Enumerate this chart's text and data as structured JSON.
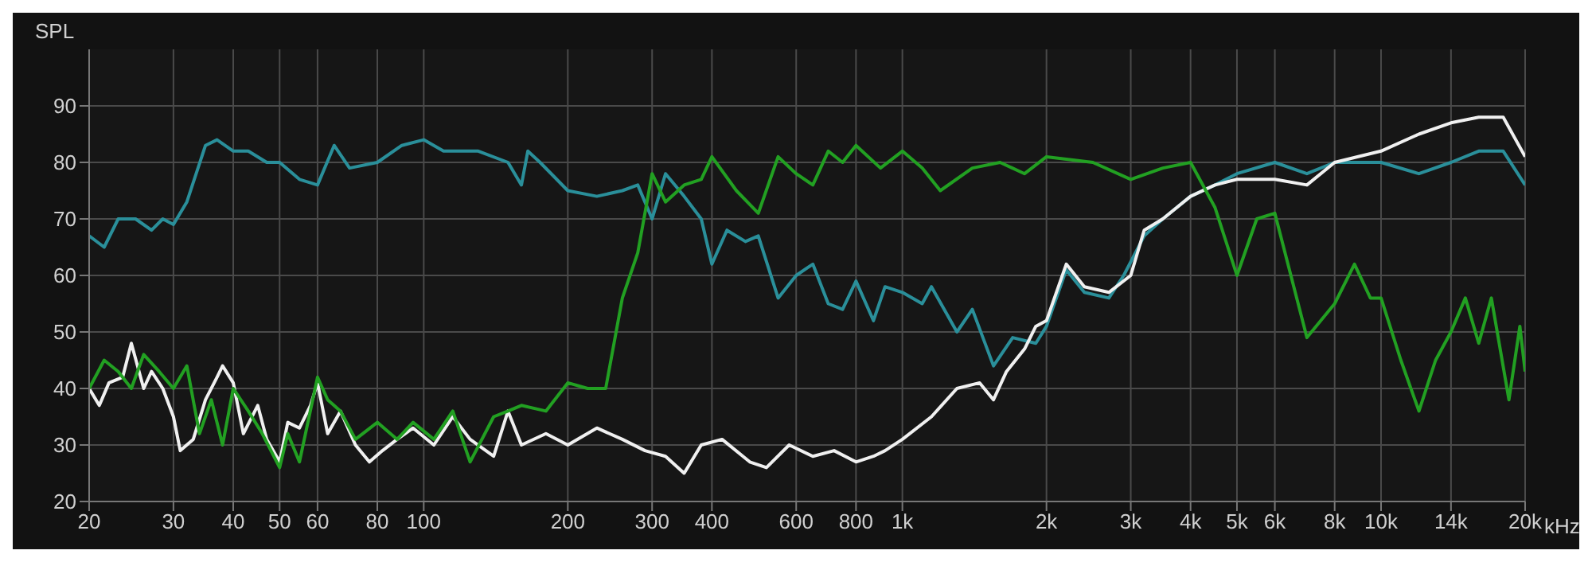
{
  "chart_data": {
    "type": "line",
    "ylabel": "SPL",
    "log": "x",
    "grid": true,
    "xlabel": "kHz",
    "marker": "none",
    "line_style": "solid",
    "xlim": [
      20,
      20000
    ],
    "ylim": [
      20,
      100
    ],
    "xticks": [
      20,
      30,
      40,
      50,
      60,
      80,
      100,
      200,
      300,
      400,
      600,
      800,
      {
        "value": 1000,
        "label": "1k"
      },
      {
        "value": 2000,
        "label": "2k"
      },
      {
        "value": 3000,
        "label": "3k"
      },
      {
        "value": 4000,
        "label": "4k"
      },
      {
        "value": 5000,
        "label": "5k"
      },
      {
        "value": 6000,
        "label": "6k"
      },
      {
        "value": 8000,
        "label": "8k"
      },
      {
        "value": 10000,
        "label": "10k"
      },
      {
        "value": 14000,
        "label": "14k"
      },
      {
        "value": 20000,
        "label": "20k"
      }
    ],
    "yticks": [
      20,
      30,
      40,
      50,
      60,
      70,
      80,
      90
    ],
    "series": [
      {
        "color": "#2a8f9a",
        "x": [
          20,
          21.5,
          23,
          25,
          27,
          28.5,
          30,
          32,
          35,
          37,
          40,
          43,
          47,
          50,
          55,
          60,
          65,
          70,
          80,
          90,
          100,
          110,
          130,
          150,
          160,
          165,
          175,
          200,
          230,
          260,
          280,
          300,
          320,
          350,
          380,
          400,
          430,
          470,
          500,
          550,
          600,
          650,
          700,
          750,
          800,
          870,
          920,
          1000,
          1100,
          1150,
          1300,
          1400,
          1550,
          1700,
          1900,
          2000,
          2200,
          2400,
          2700,
          2900,
          3200,
          3500,
          4000,
          4500,
          5000,
          6000,
          7000,
          8000,
          10000,
          12000,
          14000,
          16000,
          18000,
          20000
        ],
        "values": [
          67,
          65,
          70,
          70,
          68,
          70,
          69,
          73,
          83,
          84,
          82,
          82,
          80,
          80,
          77,
          76,
          83,
          79,
          80,
          83,
          84,
          82,
          82,
          80,
          76,
          82,
          80,
          75,
          74,
          75,
          76,
          70,
          78,
          74,
          70,
          62,
          68,
          66,
          67,
          56,
          60,
          62,
          55,
          54,
          59,
          52,
          58,
          57,
          55,
          58,
          50,
          54,
          44,
          49,
          48,
          51,
          61,
          57,
          56,
          60,
          67,
          70,
          74,
          76,
          78,
          80,
          78,
          80,
          80,
          78,
          80,
          82,
          82,
          76
        ]
      },
      {
        "color": "#f0f0f0",
        "x": [
          20,
          21,
          22,
          23.5,
          24.5,
          26,
          27,
          28.5,
          30,
          31,
          33,
          35,
          37,
          38,
          40,
          42,
          45,
          47,
          50,
          52,
          55,
          58,
          60,
          63,
          67,
          72,
          77,
          82,
          88,
          95,
          105,
          115,
          125,
          140,
          150,
          160,
          180,
          200,
          230,
          260,
          290,
          320,
          350,
          380,
          420,
          480,
          520,
          580,
          650,
          720,
          800,
          870,
          920,
          1000,
          1150,
          1300,
          1450,
          1550,
          1650,
          1800,
          1900,
          2000,
          2200,
          2400,
          2700,
          3000,
          3200,
          3500,
          4000,
          4500,
          5000,
          6000,
          7000,
          8000,
          10000,
          12000,
          14000,
          16000,
          18000,
          20000
        ],
        "values": [
          40,
          37,
          41,
          42,
          48,
          40,
          43,
          40,
          35,
          29,
          31,
          38,
          42,
          44,
          41,
          32,
          37,
          31,
          27,
          34,
          33,
          37,
          41,
          32,
          36,
          30,
          27,
          29,
          31,
          33,
          30,
          35,
          31,
          28,
          36,
          30,
          32,
          30,
          33,
          31,
          29,
          28,
          25,
          30,
          31,
          27,
          26,
          30,
          28,
          29,
          27,
          28,
          29,
          31,
          35,
          40,
          41,
          38,
          43,
          47,
          51,
          52,
          62,
          58,
          57,
          60,
          68,
          70,
          74,
          76,
          77,
          77,
          76,
          80,
          82,
          85,
          87,
          88,
          88,
          81
        ]
      },
      {
        "color": "#22a022",
        "x": [
          20,
          21.5,
          23,
          24.5,
          26,
          28,
          30,
          32,
          34,
          36,
          38,
          40,
          43,
          46,
          50,
          52,
          55,
          60,
          63,
          67,
          72,
          80,
          88,
          95,
          105,
          115,
          125,
          140,
          150,
          160,
          180,
          200,
          220,
          240,
          260,
          280,
          300,
          320,
          350,
          380,
          400,
          450,
          500,
          550,
          600,
          650,
          700,
          750,
          800,
          900,
          1000,
          1100,
          1200,
          1400,
          1600,
          1800,
          2000,
          2500,
          3000,
          3500,
          4000,
          4500,
          5000,
          5500,
          6000,
          7000,
          8000,
          8800,
          9500,
          10000,
          11000,
          12000,
          13000,
          14000,
          15000,
          16000,
          17000,
          18500,
          19500,
          20000
        ],
        "values": [
          40,
          45,
          43,
          40,
          46,
          43,
          40,
          44,
          32,
          38,
          30,
          40,
          36,
          32,
          26,
          32,
          27,
          42,
          38,
          36,
          31,
          34,
          31,
          34,
          31,
          36,
          27,
          35,
          36,
          37,
          36,
          41,
          40,
          40,
          56,
          64,
          78,
          73,
          76,
          77,
          81,
          75,
          71,
          81,
          78,
          76,
          82,
          80,
          83,
          79,
          82,
          79,
          75,
          79,
          80,
          78,
          81,
          80,
          77,
          79,
          80,
          72,
          60,
          70,
          71,
          49,
          55,
          62,
          56,
          56,
          45,
          36,
          45,
          50,
          56,
          48,
          56,
          38,
          51,
          43
        ]
      }
    ]
  }
}
